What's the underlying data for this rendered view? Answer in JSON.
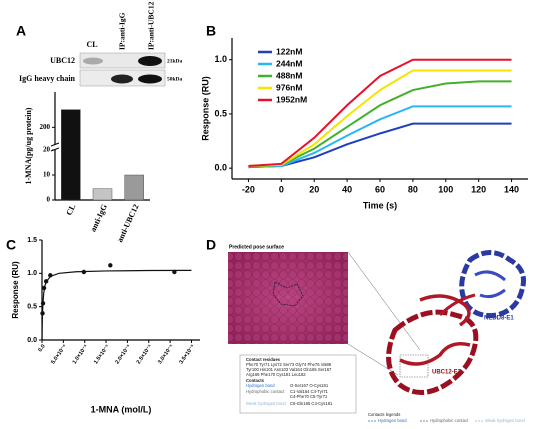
{
  "panel_labels": [
    "A",
    "B",
    "C",
    "D"
  ],
  "blot": {
    "lanes": [
      "CL",
      "IP:anti-IgG",
      "IP:anti-UBC12"
    ],
    "rows": [
      "UBC12",
      "IgG heavy chain"
    ],
    "sizes": [
      "21kDa",
      "50kDa"
    ]
  },
  "chart_data": [
    {
      "type": "bar",
      "ylabel": "1-MNA(pg/ug protein)",
      "categories": [
        "CL",
        "anti-IgG",
        "anti-UBC12"
      ],
      "values": [
        210,
        4.5,
        10
      ],
      "colors": [
        "#111111",
        "#c4c4c4",
        "#9a9a9a"
      ],
      "ylim": [
        0,
        220
      ],
      "ybreak": [
        20,
        190
      ],
      "yticks": [
        0,
        10,
        20,
        200
      ]
    },
    {
      "type": "line",
      "xlabel": "Time (s)",
      "ylabel": "Response (RU)",
      "x": [
        -20,
        0,
        20,
        40,
        60,
        80,
        100,
        120,
        140
      ],
      "series": [
        {
          "name": "122nM",
          "color": "#1f3fbf",
          "values": [
            0.01,
            0.02,
            0.1,
            0.22,
            0.32,
            0.41,
            0.41,
            0.41,
            0.41
          ]
        },
        {
          "name": "244nM",
          "color": "#29b6f6",
          "values": [
            0.01,
            0.02,
            0.14,
            0.3,
            0.45,
            0.57,
            0.57,
            0.57,
            0.57
          ]
        },
        {
          "name": "488nM",
          "color": "#43b02a",
          "values": [
            0.01,
            0.03,
            0.18,
            0.38,
            0.58,
            0.72,
            0.78,
            0.8,
            0.8
          ]
        },
        {
          "name": "976nM",
          "color": "#f2e600",
          "values": [
            0.02,
            0.03,
            0.22,
            0.48,
            0.72,
            0.9,
            0.9,
            0.9,
            0.9
          ]
        },
        {
          "name": "1952nM",
          "color": "#e8112d",
          "values": [
            0.02,
            0.04,
            0.28,
            0.58,
            0.85,
            1.0,
            1.0,
            1.0,
            1.0
          ]
        }
      ],
      "xlim": [
        -30,
        150
      ],
      "xticks": [
        -20,
        0,
        20,
        40,
        60,
        80,
        100,
        120,
        140
      ],
      "ylim": [
        -0.1,
        1.2
      ],
      "yticks": [
        {
          "value": 0,
          "label": "0.0"
        },
        0.5,
        {
          "value": 1,
          "label": "1.0"
        }
      ],
      "legend": "upper left"
    },
    {
      "type": "scatter",
      "xlabel": "1-MNA (mol/L)",
      "ylabel": "Response (RU)",
      "x": [
        1.22e-07,
        2.44e-07,
        4.88e-07,
        9.76e-07,
        1.95e-06,
        9.8e-06,
        1.6e-05,
        3.1e-05
      ],
      "values": [
        0.4,
        0.55,
        0.78,
        0.88,
        0.97,
        1.02,
        1.12,
        1.02
      ],
      "fit": {
        "x": [
          0,
          5e-08,
          1e-07,
          2e-07,
          4e-07,
          7e-07,
          1e-06,
          2e-06,
          4e-06,
          8e-06,
          1.5e-05,
          2.5e-05,
          3.5e-05
        ],
        "values": [
          0,
          0.21,
          0.35,
          0.525,
          0.7,
          0.817,
          0.875,
          0.955,
          1.0,
          1.024,
          1.036,
          1.042,
          1.044
        ]
      },
      "color": "#111111",
      "xlim": [
        0,
        3.7e-05
      ],
      "xticks": [
        {
          "value": 0,
          "label": "0.0"
        },
        {
          "value": 5e-06,
          "label": "5.0×10⁻⁶"
        },
        {
          "value": 1e-05,
          "label": "1.0×10⁻⁵"
        },
        {
          "value": 1.5e-05,
          "label": "1.5×10⁻⁵"
        },
        {
          "value": 2e-05,
          "label": "2.0×10⁻⁵"
        },
        {
          "value": 2.5e-05,
          "label": "2.5×10⁻⁵"
        },
        {
          "value": 3e-05,
          "label": "3.0×10⁻⁵"
        },
        {
          "value": 3.5e-05,
          "label": "3.5×10⁻⁵"
        }
      ],
      "ylim": [
        0,
        1.5
      ],
      "yticks": [
        {
          "value": 0,
          "label": "0.0"
        },
        0.5,
        {
          "value": 1,
          "label": "1.0"
        },
        1.5
      ]
    }
  ],
  "structure": {
    "inset_title": "Predicted pose surface",
    "e1_label": "NEDD8-E1",
    "e2_label": "UBC12-E2",
    "contact_residues_title": "Contact residues",
    "contact_residues": [
      "Phe70 Tyr71 Lys72 Ser73 Gly74 Phe76 Val89",
      "Tyr100 His101 Asn103 Val164 Gln165 Ser167",
      "Arg169 Phe170 Cys181 Leu182"
    ],
    "contacts_title": "Contacts",
    "contacts": [
      {
        "type": "Hydrogen bond",
        "residues": [
          "O-Ser167 O-Cys181"
        ]
      },
      {
        "type": "Hydrophobic contact",
        "residues": [
          "C1-Val164 C4-Tyr71",
          "C4-Phe70 C5-Tyr71"
        ]
      },
      {
        "type": "Weak hydrogen bond",
        "residues": [
          "C6-Gln165 C4-Cys181"
        ]
      }
    ],
    "legend_title": "Contacts legends",
    "legend": [
      "Hydrogen bond",
      "Hydrophobic contact",
      "Weak hydrogen bond"
    ]
  }
}
